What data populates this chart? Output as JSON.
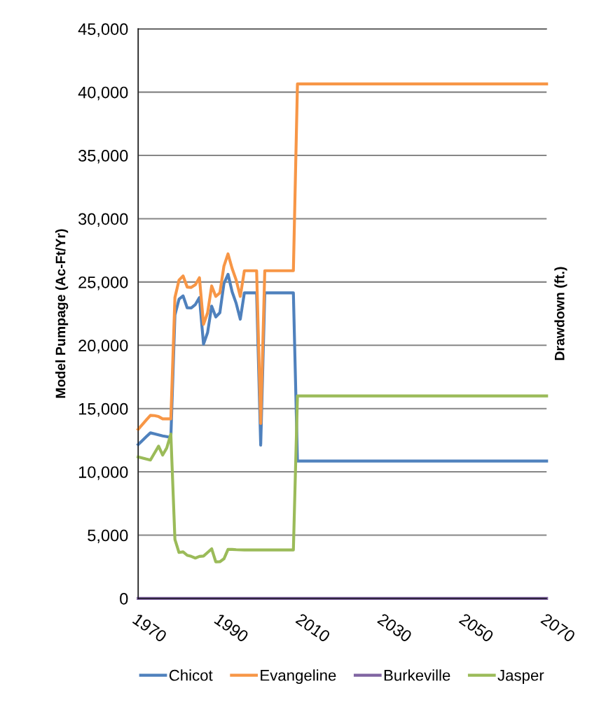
{
  "chart_data": {
    "type": "line",
    "ylabel": "Model Pumpage (Ac-Ft/Yr)",
    "y2label": "Drawdown (ft.)",
    "x": [
      1970,
      1971,
      1972,
      1973,
      1974,
      1975,
      1976,
      1977,
      1978,
      1979,
      1980,
      1981,
      1982,
      1983,
      1984,
      1985,
      1986,
      1987,
      1988,
      1989,
      1990,
      1991,
      1992,
      1993,
      1994,
      1995,
      1996,
      1997,
      1998,
      1999,
      2000,
      2001,
      2002,
      2003,
      2004,
      2005,
      2006,
      2007,
      2008,
      2009,
      2070
    ],
    "series": [
      {
        "name": "Chicot",
        "color": "#4f81bd",
        "values": [
          12160,
          12470,
          12780,
          13080,
          13000,
          12920,
          12840,
          12780,
          12710,
          22390,
          23640,
          23900,
          22960,
          22950,
          23220,
          23770,
          20090,
          21010,
          23090,
          22240,
          22570,
          24880,
          25610,
          24230,
          23310,
          22060,
          24140,
          24140,
          24140,
          24140,
          12110,
          24140,
          24140,
          24140,
          24140,
          24140,
          24140,
          24140,
          24140,
          10850,
          10850
        ]
      },
      {
        "name": "Evangeline",
        "color": "#f79646",
        "values": [
          13360,
          13730,
          14100,
          14460,
          14440,
          14370,
          14190,
          14190,
          14190,
          23770,
          25150,
          25480,
          24600,
          24570,
          24780,
          25340,
          21650,
          22570,
          24690,
          23860,
          24140,
          26260,
          27220,
          26070,
          25150,
          23860,
          25890,
          25890,
          25890,
          25890,
          13820,
          25890,
          25890,
          25890,
          25890,
          25890,
          25890,
          25890,
          25890,
          40650,
          40650
        ]
      },
      {
        "name": "Burkeville",
        "color": "#8064a2",
        "values": [
          0,
          0,
          0,
          0,
          0,
          0,
          0,
          0,
          0,
          0,
          0,
          0,
          0,
          0,
          0,
          0,
          0,
          0,
          0,
          0,
          0,
          0,
          0,
          0,
          0,
          0,
          0,
          0,
          0,
          0,
          0,
          0,
          0,
          0,
          0,
          0,
          0,
          0,
          0,
          0,
          0
        ]
      },
      {
        "name": "Jasper",
        "color": "#9bbb59",
        "values": [
          11180,
          11100,
          11010,
          10930,
          11480,
          12030,
          11330,
          11890,
          12990,
          4660,
          3630,
          3680,
          3410,
          3320,
          3190,
          3320,
          3350,
          3630,
          3920,
          2890,
          2900,
          3130,
          3870,
          3870,
          3850,
          3840,
          3830,
          3830,
          3830,
          3830,
          3830,
          3830,
          3830,
          3830,
          3830,
          3830,
          3830,
          3830,
          3830,
          16000,
          16000
        ]
      }
    ],
    "xlim": [
      1970,
      2070
    ],
    "xticks": [
      1970,
      1990,
      2010,
      2030,
      2050,
      2070
    ],
    "ylim": [
      0,
      45000
    ],
    "yticks": [
      {
        "value": 0,
        "label": "0"
      },
      {
        "value": 5000,
        "label": "5,000"
      },
      {
        "value": 10000,
        "label": "10,000"
      },
      {
        "value": 15000,
        "label": "15,000"
      },
      {
        "value": 20000,
        "label": "20,000"
      },
      {
        "value": 25000,
        "label": "25,000"
      },
      {
        "value": 30000,
        "label": "30,000"
      },
      {
        "value": 35000,
        "label": "35,000"
      },
      {
        "value": 40000,
        "label": "40,000"
      },
      {
        "value": 45000,
        "label": "45,000"
      }
    ],
    "grid": "y",
    "legend": "bottom",
    "marker": "none",
    "line_style": "solid"
  }
}
